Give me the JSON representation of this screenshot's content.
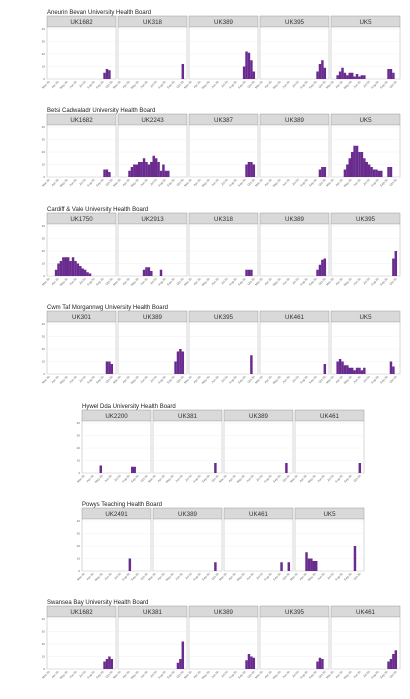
{
  "page": {
    "background": "#ffffff"
  },
  "style": {
    "bar_color": "#6a2b8f",
    "strip_fill": "#d9d9d9",
    "strip_border": "#9a9a9a",
    "panel_border": "#b0b0b0",
    "grid_color": "#ececec"
  },
  "chart_data": {
    "type": "bar",
    "y_ticks": [
      "0",
      "10",
      "20",
      "30",
      "40"
    ],
    "ylim": [
      0,
      40
    ],
    "x_ticks": [
      "Mar-20",
      "Apr-20",
      "May-20",
      "Jun-20",
      "Jul-20",
      "Aug-20",
      "Sep-20",
      "Oct-20"
    ],
    "x_bins": 26,
    "boards": [
      {
        "title": "Aneurin Bevan University Health Board",
        "panels": [
          {
            "label": "UK1682",
            "values": [
              0,
              0,
              0,
              0,
              0,
              0,
              0,
              0,
              0,
              0,
              0,
              0,
              0,
              0,
              0,
              0,
              0,
              0,
              0,
              0,
              0,
              0,
              5,
              8,
              7,
              0
            ]
          },
          {
            "label": "UK318",
            "values": [
              0,
              0,
              0,
              0,
              0,
              0,
              0,
              0,
              0,
              0,
              0,
              0,
              0,
              0,
              0,
              0,
              0,
              0,
              0,
              0,
              0,
              0,
              0,
              0,
              0,
              12
            ]
          },
          {
            "label": "UK389",
            "values": [
              0,
              0,
              0,
              0,
              0,
              0,
              0,
              0,
              0,
              0,
              0,
              0,
              0,
              0,
              0,
              0,
              0,
              0,
              0,
              0,
              0,
              10,
              22,
              21,
              15,
              6
            ]
          },
          {
            "label": "UK395",
            "values": [
              0,
              0,
              0,
              0,
              0,
              0,
              0,
              0,
              0,
              0,
              0,
              0,
              0,
              0,
              0,
              0,
              0,
              0,
              0,
              0,
              0,
              0,
              6,
              12,
              15,
              9
            ]
          },
          {
            "label": "UK5",
            "values": [
              0,
              3,
              6,
              9,
              5,
              3,
              5,
              5,
              2,
              4,
              2,
              3,
              3,
              0,
              0,
              0,
              0,
              0,
              0,
              0,
              0,
              0,
              8,
              8,
              5,
              0
            ]
          }
        ]
      },
      {
        "title": "Betsi Cadwaladr University Health Board",
        "panels": [
          {
            "label": "UK1682",
            "values": [
              0,
              0,
              0,
              0,
              0,
              0,
              0,
              0,
              0,
              0,
              0,
              0,
              0,
              0,
              0,
              0,
              0,
              0,
              0,
              0,
              0,
              0,
              6,
              6,
              4,
              0
            ]
          },
          {
            "label": "UK2243",
            "values": [
              0,
              0,
              0,
              5,
              8,
              10,
              10,
              12,
              12,
              15,
              12,
              10,
              12,
              17,
              15,
              12,
              5,
              10,
              5,
              5,
              0,
              0,
              0,
              0,
              0,
              0
            ]
          },
          {
            "label": "UK387",
            "values": [
              0,
              0,
              0,
              0,
              0,
              0,
              0,
              0,
              0,
              0,
              0,
              0,
              0,
              0,
              0,
              0,
              0,
              0,
              0,
              0,
              0,
              0,
              10,
              12,
              12,
              10
            ]
          },
          {
            "label": "UK389",
            "values": [
              0,
              0,
              0,
              0,
              0,
              0,
              0,
              0,
              0,
              0,
              0,
              0,
              0,
              0,
              0,
              0,
              0,
              0,
              0,
              0,
              0,
              0,
              0,
              6,
              8,
              8
            ]
          },
          {
            "label": "UK5",
            "values": [
              0,
              0,
              0,
              0,
              6,
              10,
              15,
              20,
              25,
              25,
              20,
              20,
              15,
              12,
              10,
              8,
              6,
              6,
              5,
              5,
              0,
              0,
              8,
              8,
              0,
              0
            ]
          }
        ]
      },
      {
        "title": "Cardiff & Vale University Health Board",
        "panels": [
          {
            "label": "UK1750",
            "values": [
              0,
              0,
              5,
              10,
              12,
              15,
              15,
              15,
              12,
              15,
              12,
              10,
              8,
              6,
              5,
              3,
              2,
              0,
              0,
              0,
              0,
              0,
              0,
              0,
              0,
              0
            ]
          },
          {
            "label": "UK2913",
            "values": [
              0,
              0,
              0,
              0,
              0,
              0,
              0,
              0,
              0,
              5,
              7,
              7,
              4,
              0,
              0,
              0,
              5,
              0,
              0,
              0,
              0,
              0,
              0,
              0,
              0,
              0
            ]
          },
          {
            "label": "UK318",
            "values": [
              0,
              0,
              0,
              0,
              0,
              0,
              0,
              0,
              0,
              0,
              0,
              0,
              0,
              0,
              0,
              0,
              0,
              0,
              0,
              0,
              0,
              0,
              5,
              5,
              5,
              0
            ]
          },
          {
            "label": "UK389",
            "values": [
              0,
              0,
              0,
              0,
              0,
              0,
              0,
              0,
              0,
              0,
              0,
              0,
              0,
              0,
              0,
              0,
              0,
              0,
              0,
              0,
              0,
              0,
              5,
              9,
              13,
              14
            ]
          },
          {
            "label": "UK395",
            "values": [
              0,
              0,
              0,
              0,
              0,
              0,
              0,
              0,
              0,
              0,
              0,
              0,
              0,
              0,
              0,
              0,
              0,
              0,
              0,
              0,
              0,
              0,
              0,
              0,
              14,
              20
            ]
          }
        ]
      },
      {
        "title": "Cwm Taf Morgannwg University Health Board",
        "panels": [
          {
            "label": "UK301",
            "values": [
              0,
              0,
              0,
              0,
              0,
              0,
              0,
              0,
              0,
              0,
              0,
              0,
              0,
              0,
              0,
              0,
              0,
              0,
              0,
              0,
              0,
              0,
              0,
              10,
              10,
              8
            ]
          },
          {
            "label": "UK389",
            "values": [
              0,
              0,
              0,
              0,
              0,
              0,
              0,
              0,
              0,
              0,
              0,
              0,
              0,
              0,
              0,
              0,
              0,
              0,
              0,
              0,
              0,
              0,
              10,
              18,
              20,
              18
            ]
          },
          {
            "label": "UK395",
            "values": [
              0,
              0,
              0,
              0,
              0,
              0,
              0,
              0,
              0,
              0,
              0,
              0,
              0,
              0,
              0,
              0,
              0,
              0,
              0,
              0,
              0,
              0,
              0,
              0,
              15,
              0
            ]
          },
          {
            "label": "UK461",
            "values": [
              0,
              0,
              0,
              0,
              0,
              0,
              0,
              0,
              0,
              0,
              0,
              0,
              0,
              0,
              0,
              0,
              0,
              0,
              0,
              0,
              0,
              0,
              0,
              0,
              0,
              8
            ]
          },
          {
            "label": "UK5",
            "values": [
              0,
              10,
              12,
              10,
              7,
              7,
              5,
              5,
              3,
              5,
              5,
              3,
              5,
              0,
              0,
              0,
              0,
              0,
              0,
              0,
              0,
              0,
              0,
              10,
              6,
              0
            ]
          }
        ]
      },
      {
        "title": "Hywel Dda University Health Board",
        "panels": [
          {
            "label": "UK2200",
            "values": [
              0,
              0,
              0,
              0,
              0,
              0,
              6,
              0,
              0,
              0,
              0,
              0,
              0,
              0,
              0,
              0,
              0,
              0,
              0,
              5,
              5,
              0,
              0,
              0,
              0,
              0
            ]
          },
          {
            "label": "UK381",
            "values": [
              0,
              0,
              0,
              0,
              0,
              0,
              0,
              0,
              0,
              0,
              0,
              0,
              0,
              0,
              0,
              0,
              0,
              0,
              0,
              0,
              0,
              0,
              0,
              0,
              8,
              0
            ]
          },
          {
            "label": "UK389",
            "values": [
              0,
              0,
              0,
              0,
              0,
              0,
              0,
              0,
              0,
              0,
              0,
              0,
              0,
              0,
              0,
              0,
              0,
              0,
              0,
              0,
              0,
              0,
              0,
              0,
              8,
              0
            ]
          },
          {
            "label": "UK461",
            "values": [
              0,
              0,
              0,
              0,
              0,
              0,
              0,
              0,
              0,
              0,
              0,
              0,
              0,
              0,
              0,
              0,
              0,
              0,
              0,
              0,
              0,
              0,
              0,
              0,
              0,
              8
            ]
          }
        ]
      },
      {
        "title": "Powys Teaching Health Board",
        "panels": [
          {
            "label": "UK2491",
            "values": [
              0,
              0,
              0,
              0,
              0,
              0,
              0,
              0,
              0,
              0,
              0,
              0,
              0,
              0,
              0,
              0,
              0,
              0,
              10,
              0,
              0,
              0,
              0,
              0,
              0,
              0
            ]
          },
          {
            "label": "UK389",
            "values": [
              0,
              0,
              0,
              0,
              0,
              0,
              0,
              0,
              0,
              0,
              0,
              0,
              0,
              0,
              0,
              0,
              0,
              0,
              0,
              0,
              0,
              0,
              0,
              0,
              7,
              0
            ]
          },
          {
            "label": "UK461",
            "values": [
              0,
              0,
              0,
              0,
              0,
              0,
              0,
              0,
              0,
              0,
              0,
              0,
              0,
              0,
              0,
              0,
              0,
              0,
              0,
              0,
              0,
              0,
              7,
              0,
              0,
              7
            ]
          },
          {
            "label": "UK5",
            "values": [
              0,
              0,
              0,
              15,
              10,
              10,
              8,
              8,
              0,
              0,
              0,
              0,
              0,
              0,
              0,
              0,
              0,
              0,
              0,
              0,
              0,
              0,
              0,
              20,
              0,
              0
            ]
          }
        ]
      },
      {
        "title": "Swansea Bay University Health Board",
        "panels": [
          {
            "label": "UK1682",
            "values": [
              0,
              0,
              0,
              0,
              0,
              0,
              0,
              0,
              0,
              0,
              0,
              0,
              0,
              0,
              0,
              0,
              0,
              0,
              0,
              0,
              0,
              0,
              6,
              8,
              10,
              8
            ]
          },
          {
            "label": "UK381",
            "values": [
              0,
              0,
              0,
              0,
              0,
              0,
              0,
              0,
              0,
              0,
              0,
              0,
              0,
              0,
              0,
              0,
              0,
              0,
              0,
              0,
              0,
              0,
              0,
              5,
              8,
              22
            ]
          },
          {
            "label": "UK389",
            "values": [
              0,
              0,
              0,
              0,
              0,
              0,
              0,
              0,
              0,
              0,
              0,
              0,
              0,
              0,
              0,
              0,
              0,
              0,
              0,
              0,
              0,
              0,
              7,
              12,
              10,
              9
            ]
          },
          {
            "label": "UK395",
            "values": [
              0,
              0,
              0,
              0,
              0,
              0,
              0,
              0,
              0,
              0,
              0,
              0,
              0,
              0,
              0,
              0,
              0,
              0,
              0,
              0,
              0,
              0,
              6,
              9,
              8,
              0
            ]
          },
          {
            "label": "UK461",
            "values": [
              0,
              0,
              0,
              0,
              0,
              0,
              0,
              0,
              0,
              0,
              0,
              0,
              0,
              0,
              0,
              0,
              0,
              0,
              0,
              0,
              0,
              0,
              6,
              8,
              12,
              15
            ]
          }
        ]
      }
    ]
  }
}
